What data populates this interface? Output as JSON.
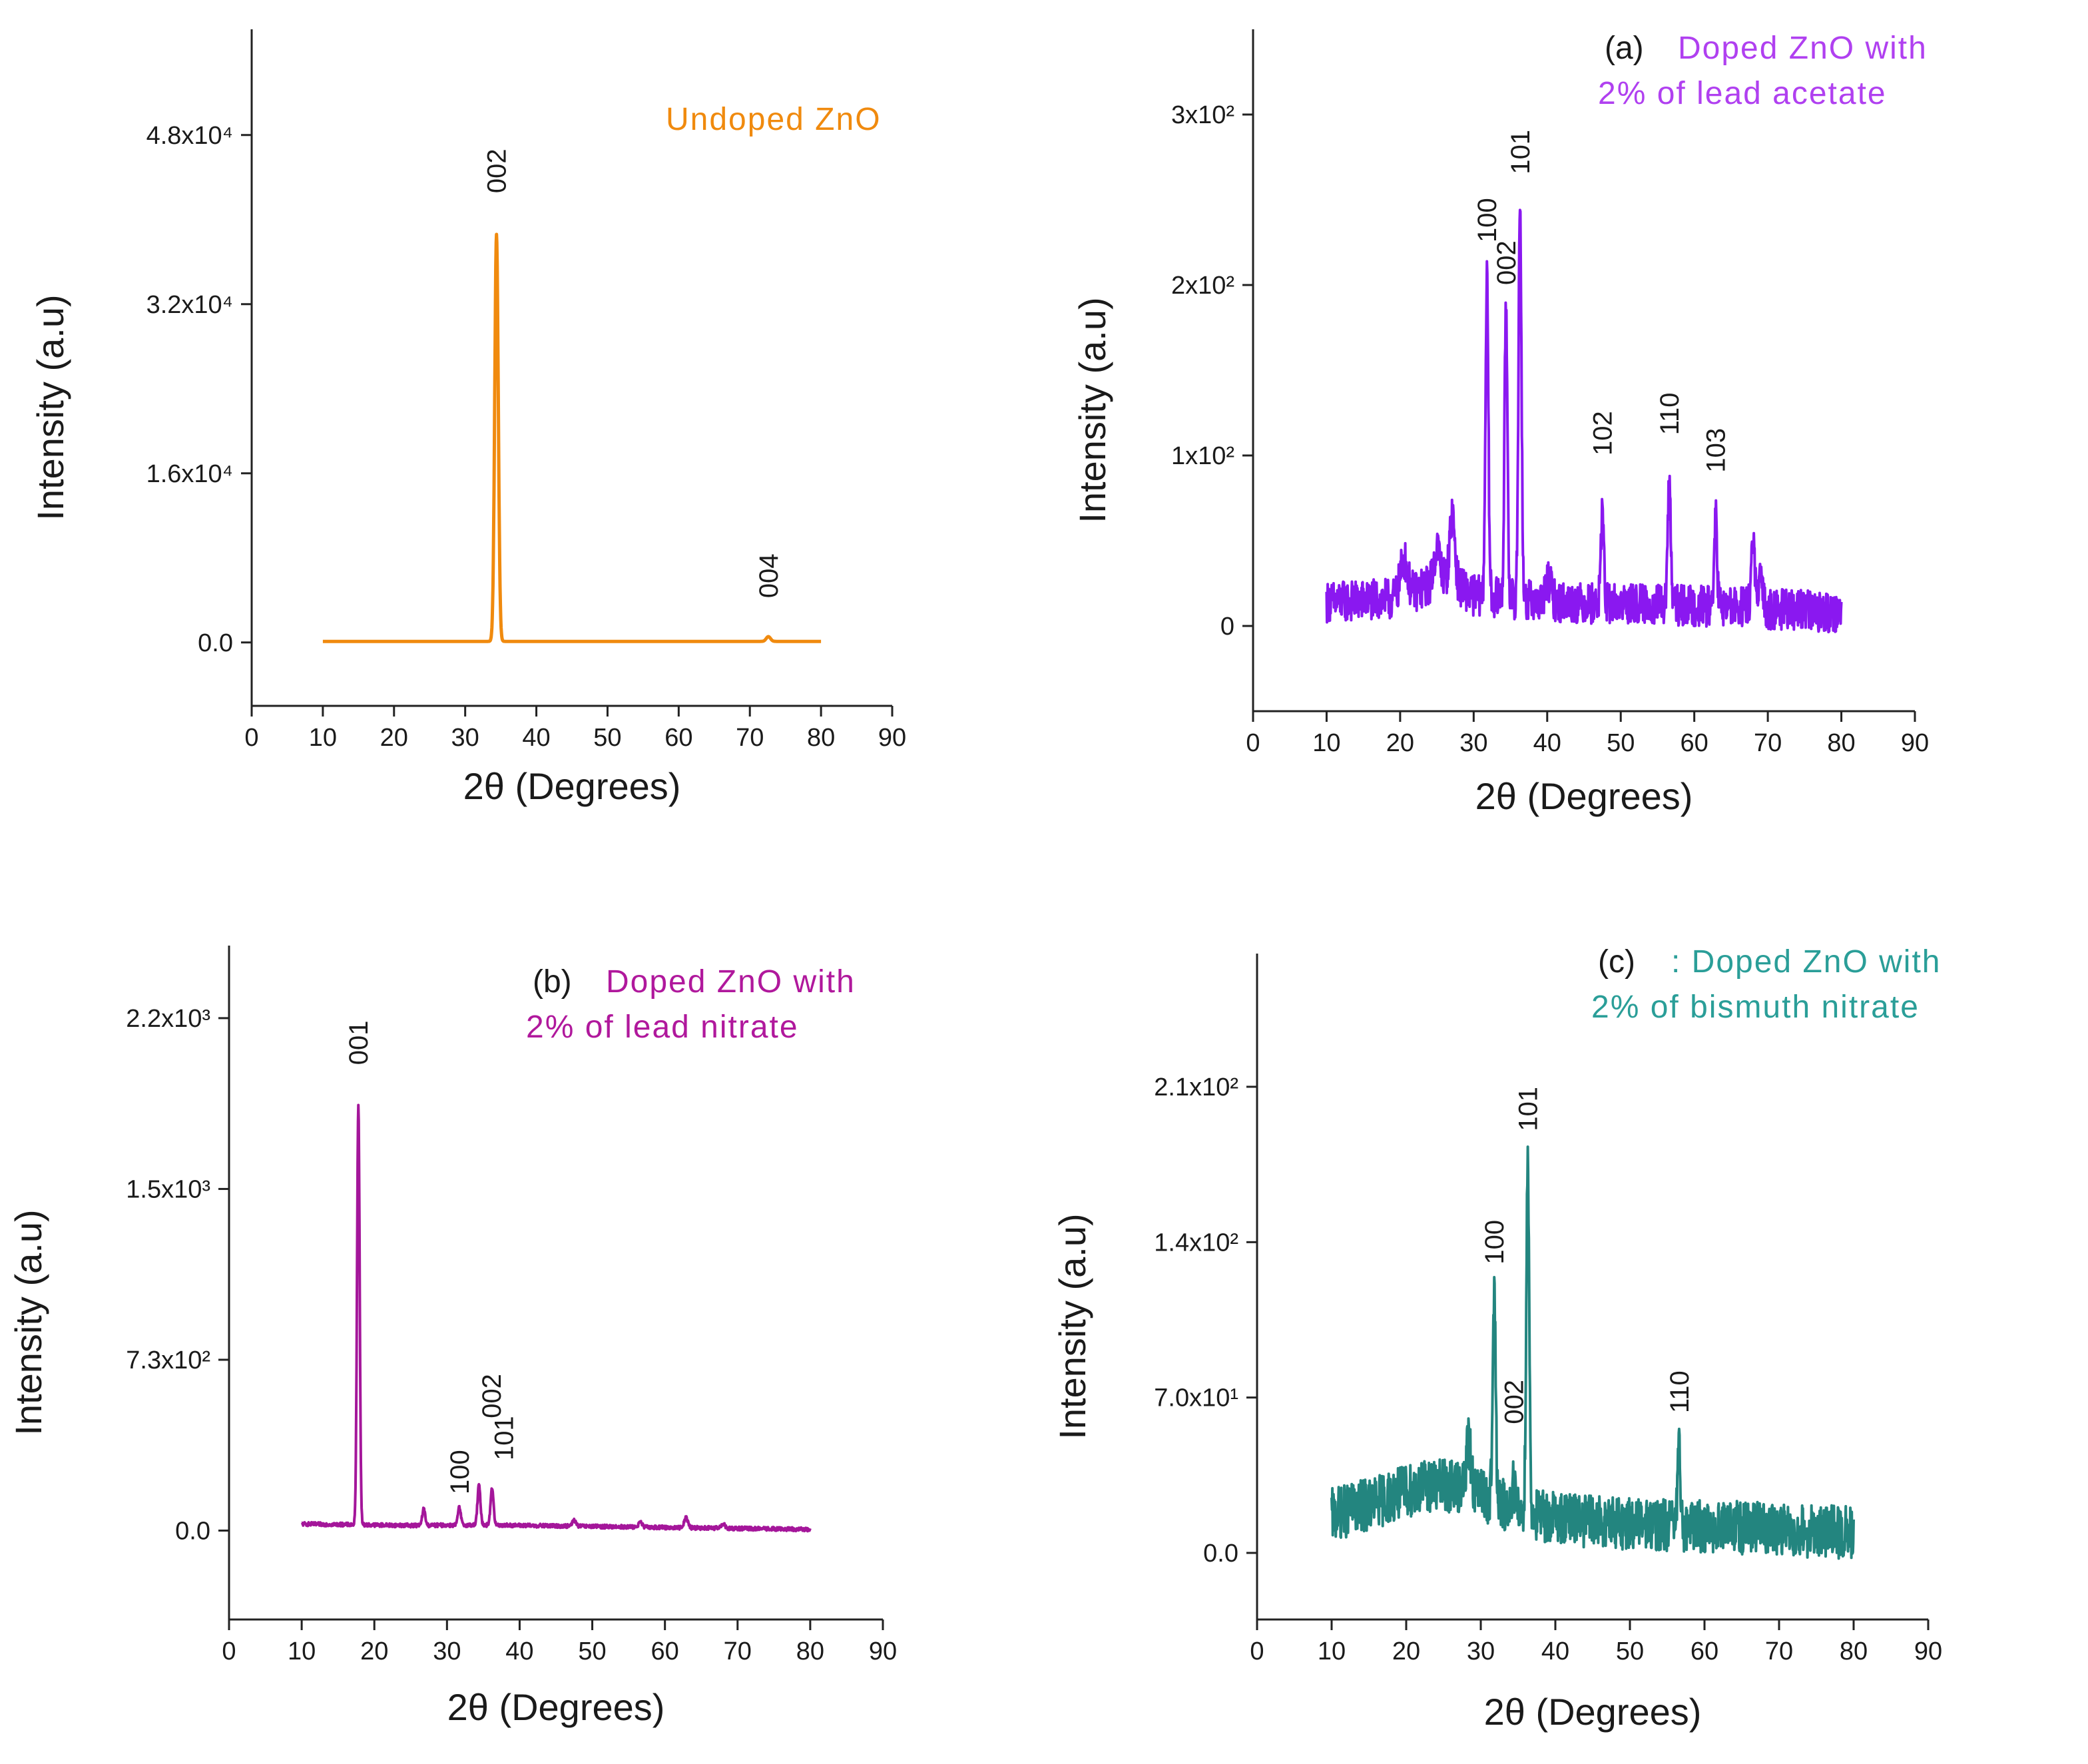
{
  "chart_data": [
    {
      "type": "line",
      "panel": "undoped",
      "legend": {
        "prefix": "",
        "lines": [
          "Undoped ZnO"
        ],
        "color": "#f08a0e"
      },
      "xlabel": "2θ (Degrees)",
      "ylabel": "Intensity (a.u)",
      "xlim": [
        0,
        90
      ],
      "ylim": [
        -6000,
        58000
      ],
      "xticks": [
        "0",
        "10",
        "20",
        "30",
        "40",
        "50",
        "60",
        "70",
        "80",
        "90"
      ],
      "yticks": [
        {
          "value": 0,
          "label": "0.0"
        },
        {
          "value": 16000,
          "label": "1.6x10⁴"
        },
        {
          "value": 32000,
          "label": "3.2x10⁴"
        },
        {
          "value": 48000,
          "label": "4.8x10⁴"
        }
      ],
      "series": [
        {
          "color": "#f08a0e",
          "x_range": [
            10,
            80
          ],
          "noise": 0,
          "background": [
            [
              10,
              100
            ],
            [
              80,
              100
            ]
          ],
          "peaks": [
            {
              "x": 34.4,
              "y": 38500,
              "width": 0.25
            },
            {
              "x": 72.6,
              "y": 450,
              "width": 0.3
            }
          ]
        }
      ],
      "annotations": [
        {
          "text": "002",
          "x": 34.4,
          "y": 42500
        },
        {
          "text": "004",
          "x": 72.6,
          "y": 4200
        }
      ]
    },
    {
      "type": "line",
      "panel": "a",
      "legend": {
        "prefix": "(a)",
        "lines": [
          "Doped ZnO with",
          "2% of lead acetate"
        ],
        "color": "#b040f0"
      },
      "xlabel": "2θ (Degrees)",
      "ylabel": "Intensity (a.u)",
      "xlim": [
        0,
        90
      ],
      "ylim": [
        -50,
        350
      ],
      "xticks": [
        "0",
        "10",
        "20",
        "30",
        "40",
        "50",
        "60",
        "70",
        "80",
        "90"
      ],
      "yticks": [
        {
          "value": 0,
          "label": "0"
        },
        {
          "value": 100,
          "label": "1x10²"
        },
        {
          "value": 200,
          "label": "2x10²"
        },
        {
          "value": 300,
          "label": "3x10²"
        }
      ],
      "series": [
        {
          "color": "#8a18f0",
          "x_range": [
            10,
            80
          ],
          "noise": 12,
          "background": [
            [
              10,
              14
            ],
            [
              20,
              16
            ],
            [
              26,
              28
            ],
            [
              30,
              18
            ],
            [
              40,
              14
            ],
            [
              60,
              12
            ],
            [
              80,
              8
            ]
          ],
          "peaks": [
            {
              "x": 20.5,
              "y": 22,
              "width": 0.5
            },
            {
              "x": 25.0,
              "y": 20,
              "width": 0.4
            },
            {
              "x": 27.1,
              "y": 40,
              "width": 0.35
            },
            {
              "x": 31.8,
              "y": 185,
              "width": 0.2
            },
            {
              "x": 34.4,
              "y": 172,
              "width": 0.2
            },
            {
              "x": 36.3,
              "y": 235,
              "width": 0.2
            },
            {
              "x": 40.2,
              "y": 12,
              "width": 0.4
            },
            {
              "x": 47.5,
              "y": 55,
              "width": 0.2
            },
            {
              "x": 56.6,
              "y": 72,
              "width": 0.2
            },
            {
              "x": 62.9,
              "y": 52,
              "width": 0.2
            },
            {
              "x": 68.0,
              "y": 38,
              "width": 0.25
            },
            {
              "x": 69.1,
              "y": 18,
              "width": 0.25
            }
          ]
        }
      ],
      "annotations": [
        {
          "text": "100",
          "x": 31.8,
          "y": 225
        },
        {
          "text": "002",
          "x": 34.4,
          "y": 200
        },
        {
          "text": "101",
          "x": 36.3,
          "y": 265
        },
        {
          "text": "102",
          "x": 47.5,
          "y": 100
        },
        {
          "text": "110",
          "x": 56.6,
          "y": 112
        },
        {
          "text": "103",
          "x": 62.9,
          "y": 90
        }
      ]
    },
    {
      "type": "line",
      "panel": "b",
      "legend": {
        "prefix": "(b)",
        "lines": [
          "Doped ZnO with",
          "2% of lead nitrate"
        ],
        "color": "#b0189c"
      },
      "xlabel": "2θ (Degrees)",
      "ylabel": "Intensity (a.u)",
      "xlim": [
        0,
        90
      ],
      "ylim": [
        -380,
        2500
      ],
      "xticks": [
        "0",
        "10",
        "20",
        "30",
        "40",
        "50",
        "60",
        "70",
        "80",
        "90"
      ],
      "yticks": [
        {
          "value": 0,
          "label": "0.0"
        },
        {
          "value": 730,
          "label": "7.3x10²"
        },
        {
          "value": 1460,
          "label": "1.5x10³"
        },
        {
          "value": 2190,
          "label": "2.2x10³"
        }
      ],
      "series": [
        {
          "color": "#a4169a",
          "x_range": [
            10,
            80
          ],
          "noise": 8,
          "background": [
            [
              10,
              28
            ],
            [
              25,
              22
            ],
            [
              35,
              24
            ],
            [
              80,
              5
            ]
          ],
          "peaks": [
            {
              "x": 17.8,
              "y": 1800,
              "width": 0.18
            },
            {
              "x": 26.8,
              "y": 70,
              "width": 0.2
            },
            {
              "x": 31.7,
              "y": 75,
              "width": 0.2
            },
            {
              "x": 34.4,
              "y": 170,
              "width": 0.2
            },
            {
              "x": 36.2,
              "y": 160,
              "width": 0.2
            },
            {
              "x": 47.5,
              "y": 25,
              "width": 0.25
            },
            {
              "x": 56.6,
              "y": 20,
              "width": 0.25
            },
            {
              "x": 62.9,
              "y": 45,
              "width": 0.25
            },
            {
              "x": 68.0,
              "y": 18,
              "width": 0.25
            }
          ]
        }
      ],
      "annotations": [
        {
          "text": "001",
          "x": 17.8,
          "y": 1990
        },
        {
          "text": "100",
          "x": 31.7,
          "y": 155
        },
        {
          "text": "002",
          "x": 36.1,
          "y": 480
        },
        {
          "text": "101",
          "x": 37.8,
          "y": 300
        }
      ]
    },
    {
      "type": "line",
      "panel": "c",
      "legend": {
        "prefix": "(c)",
        "lines": [
          ": Doped ZnO with",
          "2% of bismuth nitrate"
        ],
        "color": "#2a9e98"
      },
      "xlabel": "2θ (Degrees)",
      "ylabel": "Intensity (a.u)",
      "xlim": [
        0,
        90
      ],
      "ylim": [
        -30,
        270
      ],
      "xticks": [
        "0",
        "10",
        "20",
        "30",
        "40",
        "50",
        "60",
        "70",
        "80",
        "90"
      ],
      "yticks": [
        {
          "value": 0,
          "label": "0.0"
        },
        {
          "value": 70,
          "label": "7.0x10¹"
        },
        {
          "value": 140,
          "label": "1.4x10²"
        },
        {
          "value": 210,
          "label": "2.1x10²"
        }
      ],
      "series": [
        {
          "color": "#23857f",
          "x_range": [
            10,
            80
          ],
          "noise": 12,
          "background": [
            [
              10,
              17
            ],
            [
              15,
              22
            ],
            [
              22,
              30
            ],
            [
              28,
              30
            ],
            [
              35,
              18
            ],
            [
              45,
              14
            ],
            [
              60,
              12
            ],
            [
              80,
              9
            ]
          ],
          "peaks": [
            {
              "x": 28.4,
              "y": 20,
              "width": 0.3
            },
            {
              "x": 31.8,
              "y": 92,
              "width": 0.2
            },
            {
              "x": 34.4,
              "y": 12,
              "width": 0.25
            },
            {
              "x": 36.3,
              "y": 158,
              "width": 0.2
            },
            {
              "x": 56.6,
              "y": 32,
              "width": 0.2
            }
          ]
        }
      ],
      "annotations": [
        {
          "text": "100",
          "x": 31.8,
          "y": 130
        },
        {
          "text": "002",
          "x": 34.4,
          "y": 58
        },
        {
          "text": "101",
          "x": 36.3,
          "y": 190
        },
        {
          "text": "110",
          "x": 56.6,
          "y": 63
        }
      ]
    }
  ]
}
